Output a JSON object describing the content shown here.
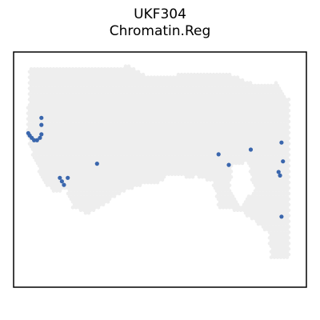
{
  "chart_data": {
    "type": "scatter",
    "title": "UKF304",
    "subtitle": "Chromatin.Reg",
    "xlabel": "",
    "ylabel": "",
    "axes_visible": false,
    "grid": false,
    "legend": "none",
    "xlim": [
      0,
      100
    ],
    "ylim": [
      0,
      100
    ],
    "colors": {
      "tissue_spot": "#eeeeee",
      "highlight": "#3a66ad",
      "frame": "#000000"
    },
    "tissue_outline": [
      [
        5.5,
        7
      ],
      [
        40,
        6
      ],
      [
        45,
        10
      ],
      [
        73,
        9
      ],
      [
        83,
        14
      ],
      [
        90,
        13
      ],
      [
        94,
        20
      ],
      [
        94,
        88
      ],
      [
        88,
        88
      ],
      [
        87,
        77
      ],
      [
        82,
        72
      ],
      [
        78,
        68
      ],
      [
        70,
        66
      ],
      [
        68,
        55
      ],
      [
        62,
        53
      ],
      [
        55,
        55
      ],
      [
        45,
        56
      ],
      [
        38,
        59
      ],
      [
        32,
        64
      ],
      [
        25,
        69
      ],
      [
        20,
        66
      ],
      [
        18,
        58
      ],
      [
        14,
        60
      ],
      [
        10,
        55
      ],
      [
        7,
        46
      ],
      [
        4.5,
        36
      ],
      [
        5,
        20
      ]
    ],
    "tissue_holes": [
      [
        [
          5.5,
          2
        ],
        [
          9,
          0
        ],
        [
          8,
          4
        ]
      ],
      [
        [
          75,
          48
        ],
        [
          80,
          47
        ],
        [
          82,
          58
        ],
        [
          78,
          66
        ],
        [
          74,
          58
        ]
      ],
      [
        [
          52,
          53
        ],
        [
          58,
          53
        ],
        [
          56,
          60
        ],
        [
          51,
          58
        ]
      ]
    ],
    "highlighted_spots": [
      {
        "x": 9.5,
        "y": 28
      },
      {
        "x": 9.5,
        "y": 31
      },
      {
        "x": 9.5,
        "y": 35
      },
      {
        "x": 9.0,
        "y": 36.5
      },
      {
        "x": 8.0,
        "y": 37.5
      },
      {
        "x": 7.0,
        "y": 37.5
      },
      {
        "x": 6.2,
        "y": 36.5
      },
      {
        "x": 5.5,
        "y": 35.5
      },
      {
        "x": 5.0,
        "y": 34.5
      },
      {
        "x": 15.8,
        "y": 53.5
      },
      {
        "x": 16.5,
        "y": 55.0
      },
      {
        "x": 17.2,
        "y": 56.5
      },
      {
        "x": 18.5,
        "y": 53.5
      },
      {
        "x": 28.5,
        "y": 47.5
      },
      {
        "x": 70.0,
        "y": 43.5
      },
      {
        "x": 73.5,
        "y": 48.0
      },
      {
        "x": 81.0,
        "y": 41.5
      },
      {
        "x": 91.5,
        "y": 38.5
      },
      {
        "x": 92.0,
        "y": 46.5
      },
      {
        "x": 90.5,
        "y": 51.0
      },
      {
        "x": 91.0,
        "y": 52.5
      },
      {
        "x": 91.5,
        "y": 70.0
      }
    ]
  }
}
